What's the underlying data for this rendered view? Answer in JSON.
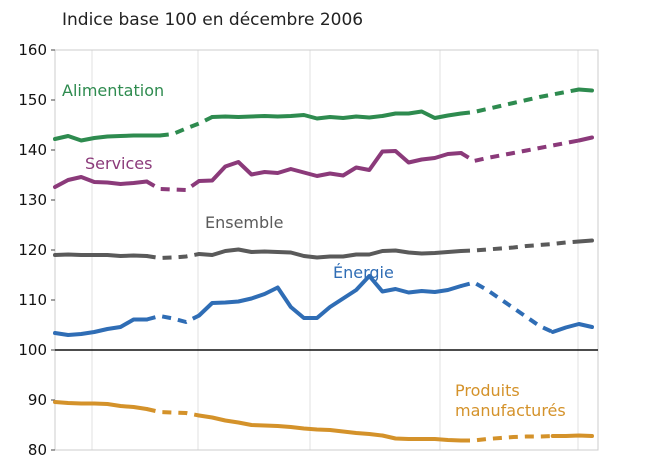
{
  "chart_data": {
    "type": "line",
    "subtitle": "Indice base 100 en décembre 2006",
    "ylim": [
      80,
      160
    ],
    "yticks": [
      80,
      90,
      100,
      110,
      120,
      130,
      140,
      150,
      160
    ],
    "reference_line": 100,
    "grid": "vertical",
    "n_points": 42,
    "series": [
      {
        "name": "Alimentation",
        "color": "#2e8b4f",
        "label_lines": [
          "Alimentation"
        ],
        "values": [
          142.2,
          142.8,
          141.9,
          142.4,
          142.7,
          142.8,
          142.9,
          142.9,
          142.9,
          143.2,
          144.3,
          145.3,
          146.6,
          146.7,
          146.6,
          146.7,
          146.8,
          146.7,
          146.8,
          147.0,
          146.3,
          146.6,
          146.4,
          146.7,
          146.5,
          146.8,
          147.3,
          147.3,
          147.7,
          146.4,
          146.9,
          147.3,
          147.6,
          148.2,
          148.8,
          149.4,
          150.0,
          150.6,
          151.1,
          151.6,
          152.1,
          151.9
        ],
        "dashed_ranges": [
          [
            8,
            12
          ],
          [
            31,
            40
          ]
        ]
      },
      {
        "name": "Services",
        "color": "#8b3a7a",
        "label_lines": [
          "Services"
        ],
        "values": [
          132.6,
          134.0,
          134.6,
          133.6,
          133.5,
          133.2,
          133.4,
          133.7,
          132.2,
          132.1,
          132.0,
          133.8,
          133.9,
          136.7,
          137.6,
          135.1,
          135.6,
          135.4,
          136.2,
          135.5,
          134.8,
          135.3,
          134.9,
          136.5,
          136.0,
          139.7,
          139.8,
          137.5,
          138.1,
          138.4,
          139.2,
          139.4,
          137.8,
          138.4,
          138.9,
          139.4,
          139.9,
          140.4,
          140.9,
          141.4,
          141.9,
          142.5
        ],
        "dashed_ranges": [
          [
            7,
            11
          ],
          [
            31,
            40
          ]
        ]
      },
      {
        "name": "Ensemble",
        "color": "#5a5a5a",
        "label_lines": [
          "Ensemble"
        ],
        "values": [
          119.0,
          119.1,
          119.0,
          119.0,
          119.0,
          118.8,
          118.9,
          118.8,
          118.4,
          118.5,
          118.7,
          119.2,
          119.0,
          119.8,
          120.1,
          119.6,
          119.7,
          119.6,
          119.5,
          118.8,
          118.5,
          118.7,
          118.7,
          119.1,
          119.1,
          119.8,
          119.9,
          119.5,
          119.3,
          119.4,
          119.6,
          119.8,
          119.9,
          120.1,
          120.3,
          120.5,
          120.8,
          121.0,
          121.2,
          121.5,
          121.7,
          121.9
        ],
        "dashed_ranges": [
          [
            7,
            11
          ],
          [
            31,
            40
          ]
        ]
      },
      {
        "name": "Énergie",
        "color": "#2f6db5",
        "label_lines": [
          "Énergie"
        ],
        "values": [
          103.4,
          103.0,
          103.2,
          103.6,
          104.2,
          104.6,
          106.1,
          106.1,
          106.8,
          106.3,
          105.6,
          106.9,
          109.4,
          109.5,
          109.7,
          110.3,
          111.2,
          112.5,
          108.6,
          106.4,
          106.4,
          108.6,
          110.3,
          112.0,
          114.8,
          111.7,
          112.2,
          111.5,
          111.8,
          111.6,
          112.0,
          112.8,
          113.5,
          112.0,
          110.2,
          108.4,
          106.6,
          104.8,
          103.6,
          104.5,
          105.2,
          104.6
        ],
        "dashed_ranges": [
          [
            7,
            11
          ],
          [
            31,
            38
          ]
        ]
      },
      {
        "name": "Produits manufacturés",
        "color": "#d4922a",
        "label_lines": [
          "Produits",
          "manufacturés"
        ],
        "values": [
          89.6,
          89.4,
          89.3,
          89.3,
          89.2,
          88.8,
          88.6,
          88.2,
          87.6,
          87.5,
          87.4,
          86.9,
          86.5,
          85.9,
          85.5,
          85.0,
          84.9,
          84.8,
          84.6,
          84.3,
          84.1,
          84.0,
          83.7,
          83.4,
          83.2,
          82.9,
          82.3,
          82.2,
          82.2,
          82.2,
          82.0,
          81.9,
          81.9,
          82.2,
          82.4,
          82.6,
          82.7,
          82.7,
          82.8,
          82.8,
          82.9,
          82.8
        ],
        "dashed_ranges": [
          [
            7,
            11
          ],
          [
            31,
            38
          ]
        ]
      }
    ]
  }
}
